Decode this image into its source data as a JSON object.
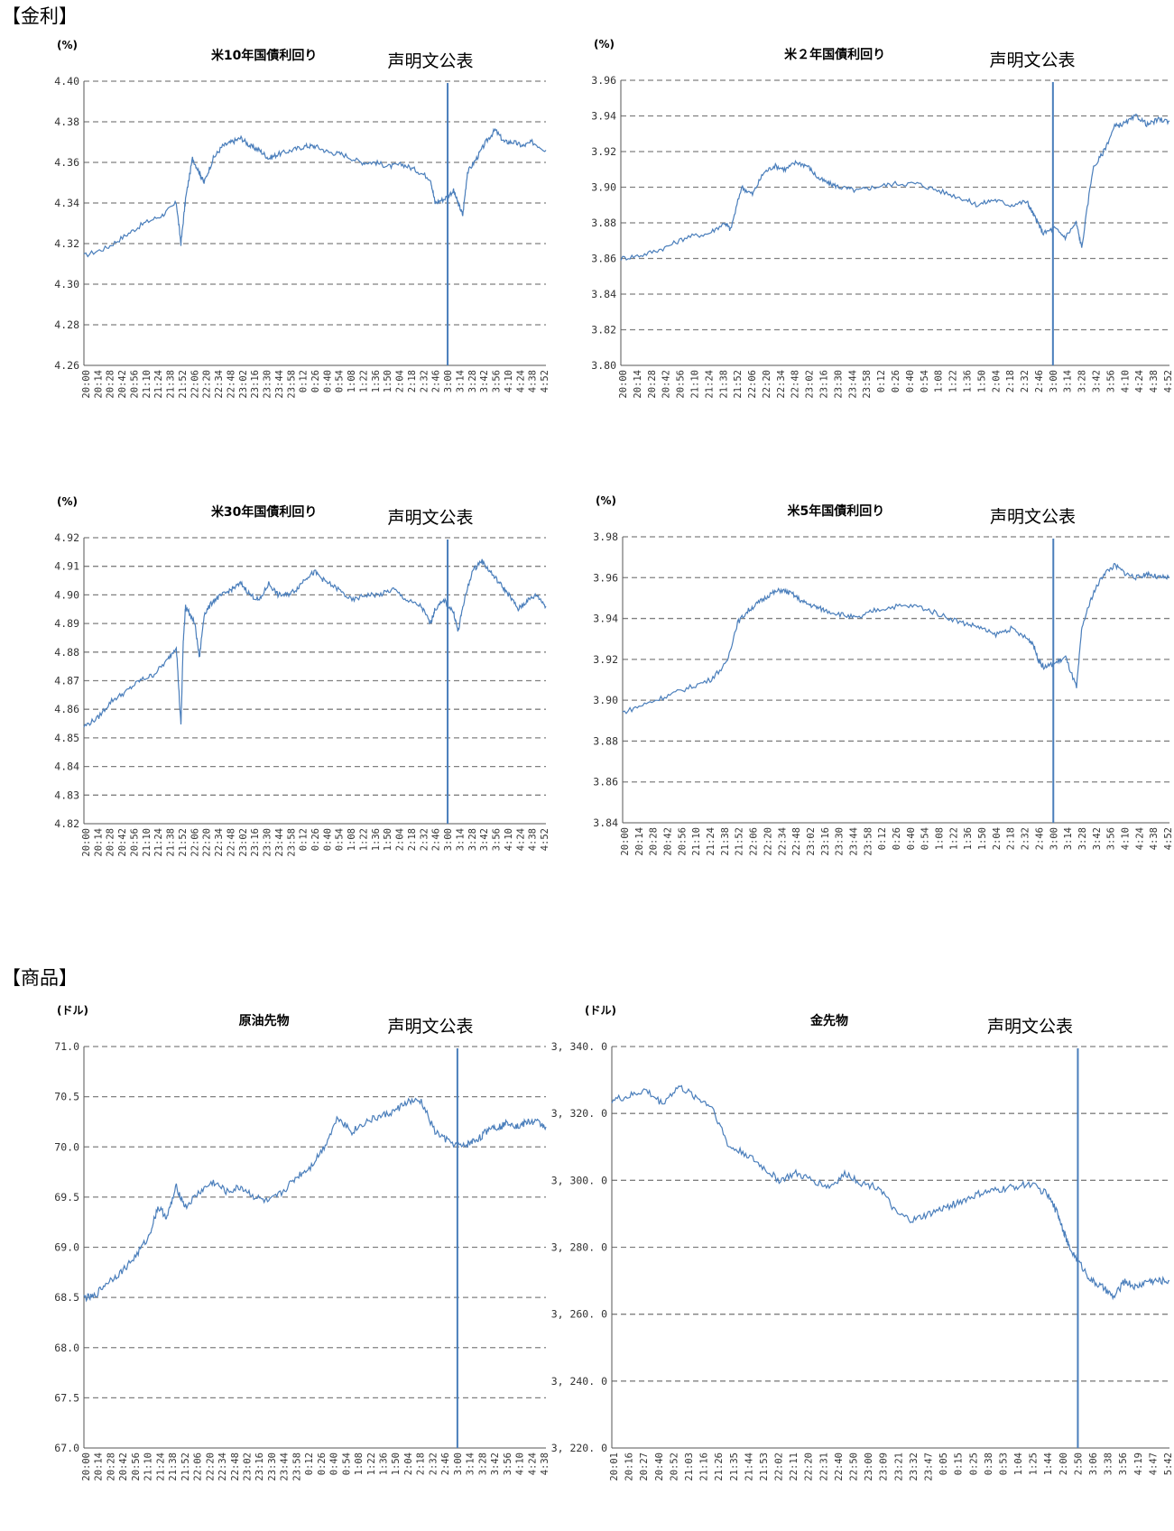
{
  "sections": {
    "rates": "【金利】",
    "commodities": "【商品】"
  },
  "chart_data": [
    {
      "type": "line",
      "title": "米10年国債利回り",
      "unit": "(%)",
      "annotation": "声明文公表",
      "ylim": [
        4.26,
        4.4
      ],
      "yticks": [
        "4.40",
        "4.38",
        "4.36",
        "4.34",
        "4.32",
        "4.30",
        "4.28",
        "4.26"
      ],
      "x_labels": [
        "20:00",
        "20:14",
        "20:28",
        "20:42",
        "20:56",
        "21:10",
        "21:24",
        "21:38",
        "21:52",
        "22:06",
        "22:20",
        "22:34",
        "22:48",
        "23:02",
        "23:16",
        "23:30",
        "23:44",
        "23:58",
        "0:12",
        "0:26",
        "0:40",
        "0:54",
        "1:08",
        "1:22",
        "1:36",
        "1:50",
        "2:04",
        "2:18",
        "2:32",
        "2:46",
        "3:00",
        "3:14",
        "3:28",
        "3:42",
        "3:56",
        "4:10",
        "4:24",
        "4:38",
        "4:52"
      ],
      "event_x": "3:00",
      "event_label": "声明文公表",
      "grid": "horizontal-dashed",
      "line_color": "#4a7ebb",
      "series": [
        {
          "x": [
            0,
            0.05,
            0.09,
            0.13,
            0.17,
            0.2,
            0.21,
            0.22,
            0.235,
            0.25,
            0.26,
            0.28,
            0.3,
            0.32,
            0.34,
            0.36,
            0.38,
            0.4,
            0.42,
            0.45,
            0.48,
            0.5,
            0.53,
            0.56,
            0.6,
            0.63,
            0.66,
            0.69,
            0.72,
            0.75,
            0.76,
            0.78,
            0.8,
            0.81,
            0.82,
            0.83,
            0.85,
            0.87,
            0.89,
            0.91,
            0.93,
            0.95,
            0.97,
            1.0
          ],
          "y": [
            4.314,
            4.318,
            4.324,
            4.33,
            4.334,
            4.34,
            4.32,
            4.342,
            4.362,
            4.355,
            4.35,
            4.362,
            4.368,
            4.37,
            4.372,
            4.368,
            4.366,
            4.362,
            4.364,
            4.366,
            4.368,
            4.368,
            4.365,
            4.364,
            4.36,
            4.36,
            4.358,
            4.359,
            4.356,
            4.352,
            4.34,
            4.342,
            4.346,
            4.34,
            4.334,
            4.355,
            4.362,
            4.37,
            4.376,
            4.37,
            4.37,
            4.368,
            4.37,
            4.366
          ]
        }
      ]
    },
    {
      "type": "line",
      "title": "米２年国債利回り",
      "unit": "(%)",
      "annotation": "声明文公表",
      "ylim": [
        3.8,
        3.96
      ],
      "yticks": [
        "3.96",
        "3.94",
        "3.92",
        "3.90",
        "3.88",
        "3.86",
        "3.84",
        "3.82",
        "3.80"
      ],
      "x_labels": [
        "20:00",
        "20:14",
        "20:28",
        "20:42",
        "20:56",
        "21:10",
        "21:24",
        "21:38",
        "21:52",
        "22:06",
        "22:20",
        "22:34",
        "22:48",
        "23:02",
        "23:16",
        "23:30",
        "23:44",
        "23:58",
        "0:12",
        "0:26",
        "0:40",
        "0:54",
        "1:08",
        "1:22",
        "1:36",
        "1:50",
        "2:04",
        "2:18",
        "2:32",
        "2:46",
        "3:00",
        "3:14",
        "3:28",
        "3:42",
        "3:56",
        "4:10",
        "4:24",
        "4:38",
        "4:52"
      ],
      "event_x": "3:00",
      "event_label": "声明文公表",
      "grid": "horizontal-dashed",
      "line_color": "#4a7ebb",
      "series": [
        {
          "x": [
            0,
            0.04,
            0.08,
            0.12,
            0.16,
            0.19,
            0.2,
            0.22,
            0.24,
            0.26,
            0.28,
            0.3,
            0.32,
            0.34,
            0.36,
            0.38,
            0.4,
            0.43,
            0.46,
            0.5,
            0.54,
            0.58,
            0.62,
            0.65,
            0.68,
            0.71,
            0.74,
            0.75,
            0.76,
            0.77,
            0.79,
            0.81,
            0.83,
            0.84,
            0.86,
            0.88,
            0.9,
            0.92,
            0.94,
            0.96,
            0.98,
            1.0
          ],
          "y": [
            3.86,
            3.862,
            3.866,
            3.872,
            3.874,
            3.88,
            3.876,
            3.9,
            3.896,
            3.908,
            3.912,
            3.91,
            3.914,
            3.912,
            3.905,
            3.902,
            3.9,
            3.898,
            3.9,
            3.902,
            3.902,
            3.898,
            3.894,
            3.89,
            3.893,
            3.89,
            3.892,
            3.886,
            3.88,
            3.874,
            3.877,
            3.872,
            3.88,
            3.866,
            3.91,
            3.92,
            3.934,
            3.936,
            3.94,
            3.935,
            3.938,
            3.937
          ]
        }
      ]
    },
    {
      "type": "line",
      "title": "米30年国債利回り",
      "unit": "(%)",
      "annotation": "声明文公表",
      "ylim": [
        4.82,
        4.92
      ],
      "yticks": [
        "4.92",
        "4.91",
        "4.90",
        "4.89",
        "4.88",
        "4.87",
        "4.86",
        "4.85",
        "4.84",
        "4.83",
        "4.82"
      ],
      "x_labels": [
        "20:00",
        "20:14",
        "20:28",
        "20:42",
        "20:56",
        "21:10",
        "21:24",
        "21:38",
        "21:52",
        "22:06",
        "22:20",
        "22:34",
        "22:48",
        "23:02",
        "23:16",
        "23:30",
        "23:44",
        "23:58",
        "0:12",
        "0:26",
        "0:40",
        "0:54",
        "1:08",
        "1:22",
        "1:36",
        "1:50",
        "2:04",
        "2:18",
        "2:32",
        "2:46",
        "3:00",
        "3:14",
        "3:28",
        "3:42",
        "3:56",
        "4:10",
        "4:24",
        "4:38",
        "4:52"
      ],
      "event_x": "3:00",
      "event_label": "声明文公表",
      "grid": "horizontal-dashed",
      "line_color": "#4a7ebb",
      "series": [
        {
          "x": [
            0,
            0.03,
            0.06,
            0.09,
            0.12,
            0.15,
            0.18,
            0.2,
            0.21,
            0.215,
            0.22,
            0.24,
            0.25,
            0.26,
            0.28,
            0.3,
            0.32,
            0.34,
            0.36,
            0.38,
            0.4,
            0.42,
            0.44,
            0.46,
            0.48,
            0.5,
            0.52,
            0.55,
            0.58,
            0.61,
            0.64,
            0.67,
            0.7,
            0.73,
            0.75,
            0.76,
            0.78,
            0.8,
            0.81,
            0.82,
            0.84,
            0.86,
            0.88,
            0.9,
            0.92,
            0.94,
            0.96,
            0.98,
            1.0
          ],
          "y": [
            4.854,
            4.857,
            4.863,
            4.866,
            4.87,
            4.872,
            4.877,
            4.882,
            4.854,
            4.884,
            4.896,
            4.89,
            4.878,
            4.893,
            4.898,
            4.9,
            4.902,
            4.904,
            4.9,
            4.898,
            4.904,
            4.9,
            4.9,
            4.902,
            4.906,
            4.908,
            4.905,
            4.902,
            4.898,
            4.9,
            4.9,
            4.902,
            4.898,
            4.896,
            4.89,
            4.895,
            4.898,
            4.894,
            4.887,
            4.896,
            4.908,
            4.912,
            4.908,
            4.904,
            4.9,
            4.895,
            4.898,
            4.9,
            4.896
          ]
        }
      ]
    },
    {
      "type": "line",
      "title": "米5年国債利回り",
      "unit": "(%)",
      "annotation": "声明文公表",
      "ylim": [
        3.84,
        3.98
      ],
      "yticks": [
        "3.98",
        "3.96",
        "3.94",
        "3.92",
        "3.90",
        "3.88",
        "3.86",
        "3.84"
      ],
      "x_labels": [
        "20:00",
        "20:14",
        "20:28",
        "20:42",
        "20:56",
        "21:10",
        "21:24",
        "21:38",
        "21:52",
        "22:06",
        "22:20",
        "22:34",
        "22:48",
        "23:02",
        "23:16",
        "23:30",
        "23:44",
        "23:58",
        "0:12",
        "0:26",
        "0:40",
        "0:54",
        "1:08",
        "1:22",
        "1:36",
        "1:50",
        "2:04",
        "2:18",
        "2:32",
        "2:46",
        "3:00",
        "3:14",
        "3:28",
        "3:42",
        "3:56",
        "4:10",
        "4:24",
        "4:38",
        "4:52"
      ],
      "event_x": "3:00",
      "event_label": "声明文公表",
      "grid": "horizontal-dashed",
      "line_color": "#4a7ebb",
      "series": [
        {
          "x": [
            0,
            0.04,
            0.08,
            0.12,
            0.16,
            0.19,
            0.21,
            0.23,
            0.25,
            0.27,
            0.29,
            0.31,
            0.33,
            0.35,
            0.37,
            0.4,
            0.43,
            0.46,
            0.5,
            0.54,
            0.58,
            0.62,
            0.65,
            0.68,
            0.71,
            0.74,
            0.75,
            0.76,
            0.77,
            0.79,
            0.81,
            0.83,
            0.84,
            0.86,
            0.88,
            0.9,
            0.92,
            0.94,
            0.96,
            0.98,
            1.0
          ],
          "y": [
            3.894,
            3.898,
            3.902,
            3.906,
            3.91,
            3.918,
            3.938,
            3.944,
            3.948,
            3.952,
            3.954,
            3.952,
            3.948,
            3.946,
            3.944,
            3.942,
            3.94,
            3.944,
            3.946,
            3.946,
            3.942,
            3.938,
            3.936,
            3.932,
            3.935,
            3.93,
            3.928,
            3.92,
            3.916,
            3.918,
            3.921,
            3.906,
            3.936,
            3.952,
            3.962,
            3.966,
            3.962,
            3.96,
            3.962,
            3.96,
            3.96
          ]
        }
      ]
    },
    {
      "type": "line",
      "title": "原油先物",
      "unit": "(ドル)",
      "annotation": "声明文公表",
      "ylim": [
        67.0,
        71.0
      ],
      "yticks": [
        "71.0",
        "70.5",
        "70.0",
        "69.5",
        "69.0",
        "68.5",
        "68.0",
        "67.5",
        "67.0"
      ],
      "x_labels": [
        "20:00",
        "20:14",
        "20:28",
        "20:42",
        "20:56",
        "21:10",
        "21:24",
        "21:38",
        "21:52",
        "22:06",
        "22:20",
        "22:34",
        "22:48",
        "23:02",
        "23:16",
        "23:30",
        "23:44",
        "23:58",
        "0:12",
        "0:26",
        "0:40",
        "0:54",
        "1:08",
        "1:22",
        "1:36",
        "1:50",
        "2:04",
        "2:18",
        "2:32",
        "2:46",
        "3:00",
        "3:14",
        "3:28",
        "3:42",
        "3:56",
        "4:10",
        "4:24",
        "4:38"
      ],
      "event_x": "3:00",
      "event_label": "声明文公表",
      "grid": "horizontal-dashed",
      "line_color": "#4a7ebb",
      "series": [
        {
          "x": [
            0,
            0.02,
            0.05,
            0.08,
            0.11,
            0.14,
            0.16,
            0.18,
            0.2,
            0.22,
            0.25,
            0.28,
            0.31,
            0.34,
            0.37,
            0.4,
            0.43,
            0.46,
            0.49,
            0.52,
            0.55,
            0.58,
            0.61,
            0.64,
            0.67,
            0.7,
            0.73,
            0.76,
            0.79,
            0.82,
            0.84,
            0.86,
            0.88,
            0.9,
            0.92,
            0.94,
            0.96,
            0.98,
            1.0
          ],
          "y": [
            68.5,
            68.5,
            68.65,
            68.75,
            68.9,
            69.1,
            69.4,
            69.3,
            69.6,
            69.4,
            69.55,
            69.65,
            69.55,
            69.6,
            69.5,
            69.45,
            69.55,
            69.7,
            69.8,
            70.0,
            70.3,
            70.15,
            70.25,
            70.3,
            70.35,
            70.45,
            70.45,
            70.15,
            70.05,
            70.0,
            70.05,
            70.1,
            70.2,
            70.2,
            70.25,
            70.2,
            70.25,
            70.25,
            70.2
          ]
        }
      ]
    },
    {
      "type": "line",
      "title": "金先物",
      "unit": "(ドル)",
      "annotation": "声明文公表",
      "ylim": [
        3220.0,
        3340.0
      ],
      "yticks": [
        "3, 340. 0",
        "3, 320. 0",
        "3, 300. 0",
        "3, 280. 0",
        "3, 260. 0",
        "3, 240. 0",
        "3, 220. 0"
      ],
      "x_labels": [
        "20:01",
        "20:16",
        "20:27",
        "20:40",
        "20:52",
        "21:03",
        "21:16",
        "21:26",
        "21:35",
        "21:44",
        "21:53",
        "22:02",
        "22:11",
        "22:20",
        "22:31",
        "22:40",
        "22:50",
        "23:00",
        "23:09",
        "23:21",
        "23:32",
        "23:47",
        "0:05",
        "0:15",
        "0:25",
        "0:38",
        "0:53",
        "1:04",
        "1:25",
        "1:44",
        "2:00",
        "2:50",
        "3:06",
        "3:38",
        "3:56",
        "4:19",
        "4:47",
        "5:42"
      ],
      "event_x": "2:50",
      "event_label": "声明文公表",
      "grid": "horizontal-dashed",
      "line_color": "#4a7ebb",
      "series": [
        {
          "x": [
            0,
            0.03,
            0.06,
            0.09,
            0.12,
            0.15,
            0.18,
            0.21,
            0.24,
            0.27,
            0.3,
            0.33,
            0.36,
            0.39,
            0.42,
            0.45,
            0.48,
            0.51,
            0.54,
            0.57,
            0.6,
            0.63,
            0.66,
            0.69,
            0.72,
            0.75,
            0.78,
            0.8,
            0.81,
            0.82,
            0.84,
            0.86,
            0.88,
            0.9,
            0.92,
            0.94,
            0.96,
            0.98,
            1.0
          ],
          "y": [
            3324,
            3325,
            3327,
            3323,
            3328,
            3325,
            3322,
            3310,
            3308,
            3304,
            3300,
            3302,
            3300,
            3298,
            3302,
            3299,
            3298,
            3290,
            3288,
            3290,
            3292,
            3294,
            3296,
            3297,
            3298,
            3299,
            3296,
            3290,
            3285,
            3280,
            3275,
            3270,
            3268,
            3265,
            3270,
            3268,
            3270,
            3270,
            3270
          ]
        }
      ]
    }
  ]
}
